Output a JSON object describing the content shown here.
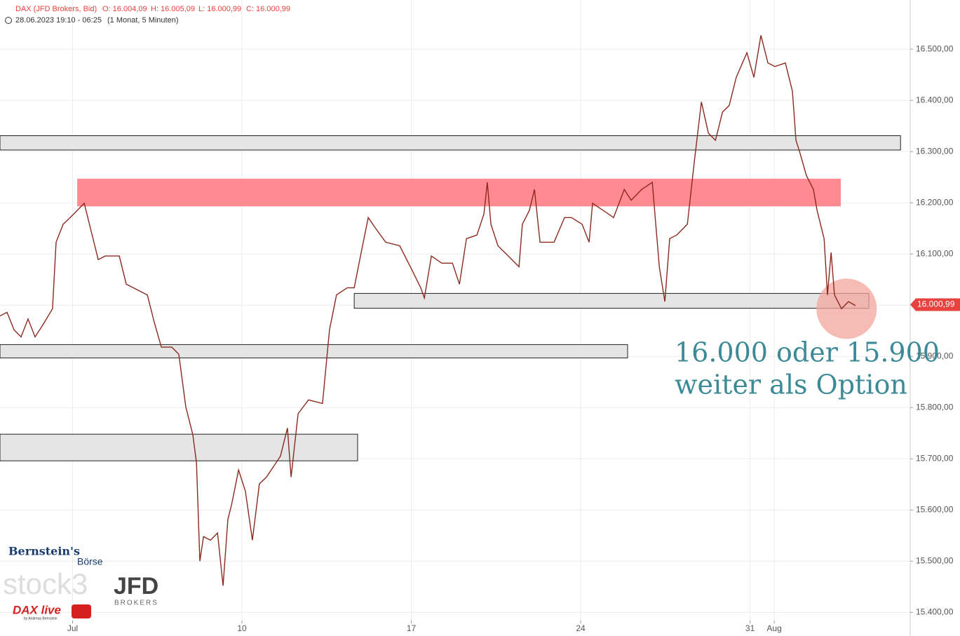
{
  "chart_data": {
    "type": "line",
    "title": "DAX (JFD Brokers, Bid)",
    "ohlc": [
      "O: 16.004,09",
      "H: 16.005,09",
      "L: 16.000,99",
      "C: 16.000,99"
    ],
    "subtitle": "28.06.2023 19:10 - 06:25",
    "period": "(1 Monat, 5 Minuten)",
    "xlim": [
      0,
      37.62
    ],
    "ylim": [
      15384,
      16596
    ],
    "xticks": [
      {
        "value": 3,
        "label": "Jul"
      },
      10,
      17,
      24,
      31,
      {
        "value": 32,
        "label": "Aug"
      }
    ],
    "yticks": [
      {
        "value": 15400,
        "label": "15.400,00"
      },
      {
        "value": 15500,
        "label": "15.500,00"
      },
      {
        "value": 15600,
        "label": "15.600,00"
      },
      {
        "value": 15700,
        "label": "15.700,00"
      },
      {
        "value": 15800,
        "label": "15.800,00"
      },
      {
        "value": 15900,
        "label": "15.900,00"
      },
      {
        "value": 16000,
        "label": "16.000,00"
      },
      {
        "value": 16100,
        "label": "16.100,00"
      },
      {
        "value": 16200,
        "label": "16.200,00"
      },
      {
        "value": 16300,
        "label": "16.300,00"
      },
      {
        "value": 16400,
        "label": "16.400,00"
      },
      {
        "value": 16500,
        "label": "16.500,00"
      }
    ],
    "grid": true,
    "series": [
      {
        "name": "DAX",
        "color": "#8b2a1f",
        "x": [
          0,
          0.29,
          0.58,
          0.87,
          1.16,
          1.45,
          1.74,
          2.17,
          2.32,
          2.61,
          2.9,
          3.19,
          3.48,
          3.77,
          4.06,
          4.35,
          4.93,
          5.22,
          5.8,
          6.09,
          6.38,
          6.67,
          7.1,
          7.39,
          7.68,
          7.97,
          8.12,
          8.26,
          8.41,
          8.7,
          8.99,
          9.22,
          9.42,
          9.57,
          9.86,
          10.14,
          10.43,
          10.72,
          11.01,
          11.59,
          11.88,
          12.03,
          12.32,
          12.75,
          13.33,
          13.62,
          13.91,
          14.35,
          14.64,
          14.93,
          15.22,
          15.51,
          15.94,
          16.52,
          16.96,
          17.39,
          17.54,
          17.83,
          18.26,
          18.7,
          18.99,
          19.28,
          19.71,
          20,
          20.14,
          20.29,
          20.58,
          21.01,
          21.45,
          21.59,
          21.88,
          22.09,
          22.32,
          22.9,
          23.33,
          23.62,
          24.06,
          24.35,
          24.49,
          24.93,
          25.36,
          25.8,
          26.09,
          26.52,
          26.96,
          27.25,
          27.48,
          27.68,
          27.97,
          28.41,
          28.7,
          28.99,
          29.28,
          29.57,
          29.86,
          30.14,
          30.43,
          30.87,
          31.16,
          31.45,
          31.74,
          32.03,
          32.46,
          32.75,
          32.9,
          33.04,
          33.33,
          33.62,
          33.77,
          34.06,
          34.2,
          34.35,
          34.49,
          34.78,
          35.07,
          35.36
        ],
        "values": [
          15979,
          15986,
          15952,
          15938,
          15973,
          15938,
          15959,
          15993,
          16123,
          16158,
          16171,
          16185,
          16199,
          16144,
          16089,
          16096,
          16096,
          16041,
          16027,
          16020,
          15966,
          15918,
          15918,
          15904,
          15801,
          15747,
          15692,
          15500,
          15548,
          15541,
          15555,
          15452,
          15582,
          15610,
          15678,
          15637,
          15541,
          15651,
          15664,
          15705,
          15760,
          15664,
          15788,
          15815,
          15808,
          15952,
          16020,
          16034,
          16034,
          16103,
          16171,
          16151,
          16123,
          16116,
          16075,
          16034,
          16014,
          16096,
          16082,
          16082,
          16041,
          16130,
          16137,
          16178,
          16240,
          16158,
          16116,
          16096,
          16075,
          16158,
          16185,
          16226,
          16123,
          16123,
          16171,
          16171,
          16158,
          16123,
          16199,
          16185,
          16171,
          16226,
          16205,
          16226,
          16240,
          16075,
          16007,
          16130,
          16137,
          16158,
          16281,
          16397,
          16336,
          16322,
          16377,
          16390,
          16445,
          16493,
          16445,
          16527,
          16473,
          16466,
          16473,
          16418,
          16322,
          16301,
          16253,
          16226,
          16185,
          16130,
          16020,
          16103,
          16020,
          15993,
          16007,
          15999
        ]
      }
    ],
    "zones": [
      {
        "x0": 0,
        "x1": 37.22,
        "y0": 16303,
        "y1": 16331,
        "color": "#e5e5e5"
      },
      {
        "x0": 3.19,
        "x1": 34.75,
        "y0": 16193,
        "y1": 16247,
        "color": "#ff8a92"
      },
      {
        "x0": 14.64,
        "x1": 35.91,
        "y0": 15994,
        "y1": 16023,
        "color": "#e5e5e5"
      },
      {
        "x0": 0,
        "x1": 25.94,
        "y0": 15897,
        "y1": 15923,
        "color": "#e5e5e5"
      },
      {
        "x0": 0,
        "x1": 14.78,
        "y0": 15696,
        "y1": 15748,
        "color": "#e5e5e5"
      }
    ],
    "highlight": {
      "x": 34.99,
      "y": 15993,
      "color": "#f4a49c"
    },
    "last": {
      "value": 16000.99,
      "label": "16.000,99",
      "color": "#e8423f"
    },
    "annotations": [
      "16.000 oder 15.900",
      "weiter als Option"
    ],
    "logos": [
      "Bernstein's",
      "Börse",
      "stock3",
      "JFD",
      "BROKERS",
      "DAX live",
      "by Andreas Bernstein"
    ]
  }
}
